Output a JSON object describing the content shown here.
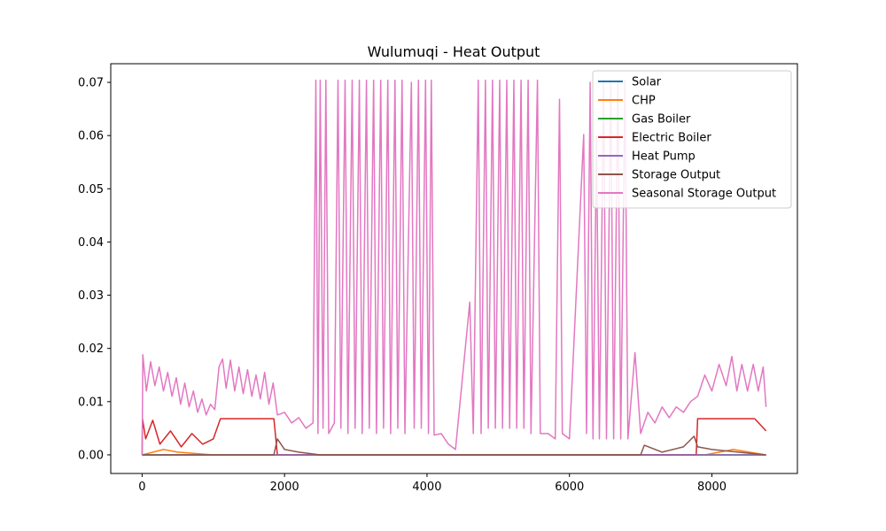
{
  "chart_data": {
    "type": "line",
    "title": "Wulumuqi - Heat Output",
    "xlabel": "",
    "ylabel": "",
    "xlim": [
      -440,
      9200
    ],
    "ylim": [
      -0.0035,
      0.0735
    ],
    "x_ticks": [
      0,
      2000,
      4000,
      6000,
      8000
    ],
    "x_tick_labels": [
      "0",
      "2000",
      "4000",
      "6000",
      "8000"
    ],
    "y_ticks": [
      0.0,
      0.01,
      0.02,
      0.03,
      0.04,
      0.05,
      0.06,
      0.07
    ],
    "y_tick_labels": [
      "0.00",
      "0.01",
      "0.02",
      "0.03",
      "0.04",
      "0.05",
      "0.06",
      "0.07"
    ],
    "grid": false,
    "legend_position": "upper right",
    "series": [
      {
        "name": "Solar",
        "color": "#1f77b4",
        "points": [
          [
            0,
            0
          ],
          [
            8760,
            0
          ]
        ]
      },
      {
        "name": "CHP",
        "color": "#ff7f0e",
        "points": [
          [
            0,
            0
          ],
          [
            300,
            0.001
          ],
          [
            500,
            0.0005
          ],
          [
            1000,
            0
          ],
          [
            7900,
            0
          ],
          [
            8300,
            0.001
          ],
          [
            8760,
            0
          ]
        ]
      },
      {
        "name": "Gas Boiler",
        "color": "#2ca02c",
        "points": [
          [
            0,
            0
          ],
          [
            8760,
            0
          ]
        ]
      },
      {
        "name": "Electric Boiler",
        "color": "#d62728",
        "points": [
          [
            0,
            0
          ],
          [
            5,
            0.0068
          ],
          [
            50,
            0.003
          ],
          [
            150,
            0.0065
          ],
          [
            250,
            0.002
          ],
          [
            400,
            0.0045
          ],
          [
            550,
            0.0015
          ],
          [
            700,
            0.004
          ],
          [
            850,
            0.002
          ],
          [
            1000,
            0.003
          ],
          [
            1100,
            0.0068
          ],
          [
            1300,
            0.0068
          ],
          [
            1500,
            0.0068
          ],
          [
            1700,
            0.0068
          ],
          [
            1850,
            0.0068
          ],
          [
            1900,
            0
          ],
          [
            7780,
            0
          ],
          [
            7800,
            0.0068
          ],
          [
            8000,
            0.0068
          ],
          [
            8200,
            0.0068
          ],
          [
            8400,
            0.0068
          ],
          [
            8600,
            0.0068
          ],
          [
            8760,
            0.0045
          ]
        ]
      },
      {
        "name": "Heat Pump",
        "color": "#9467bd",
        "points": [
          [
            0,
            0
          ],
          [
            8760,
            0
          ]
        ]
      },
      {
        "name": "Storage Output",
        "color": "#8c564b",
        "points": [
          [
            0,
            0
          ],
          [
            1850,
            0
          ],
          [
            1900,
            0.003
          ],
          [
            2000,
            0.001
          ],
          [
            2200,
            0.0005
          ],
          [
            2500,
            0
          ],
          [
            7000,
            0
          ],
          [
            7050,
            0.0018
          ],
          [
            7300,
            0.0005
          ],
          [
            7600,
            0.0015
          ],
          [
            7750,
            0.0035
          ],
          [
            7800,
            0.0015
          ],
          [
            8000,
            0.001
          ],
          [
            8760,
            0
          ]
        ]
      },
      {
        "name": "Seasonal Storage Output",
        "color": "#e377c2",
        "points": [
          [
            0,
            0
          ],
          [
            10,
            0.0188
          ],
          [
            60,
            0.012
          ],
          [
            120,
            0.0175
          ],
          [
            180,
            0.013
          ],
          [
            240,
            0.0165
          ],
          [
            300,
            0.012
          ],
          [
            360,
            0.0155
          ],
          [
            420,
            0.011
          ],
          [
            480,
            0.0145
          ],
          [
            540,
            0.0095
          ],
          [
            600,
            0.0135
          ],
          [
            660,
            0.009
          ],
          [
            720,
            0.012
          ],
          [
            780,
            0.008
          ],
          [
            840,
            0.0105
          ],
          [
            900,
            0.0075
          ],
          [
            960,
            0.0095
          ],
          [
            1020,
            0.0085
          ],
          [
            1080,
            0.0165
          ],
          [
            1130,
            0.018
          ],
          [
            1180,
            0.0125
          ],
          [
            1240,
            0.0178
          ],
          [
            1300,
            0.012
          ],
          [
            1360,
            0.0165
          ],
          [
            1420,
            0.0115
          ],
          [
            1480,
            0.016
          ],
          [
            1540,
            0.011
          ],
          [
            1600,
            0.015
          ],
          [
            1660,
            0.0105
          ],
          [
            1720,
            0.0155
          ],
          [
            1780,
            0.0095
          ],
          [
            1840,
            0.0135
          ],
          [
            1900,
            0.0075
          ],
          [
            2000,
            0.008
          ],
          [
            2100,
            0.006
          ],
          [
            2200,
            0.007
          ],
          [
            2300,
            0.005
          ],
          [
            2400,
            0.006
          ],
          [
            2440,
            0.0704
          ],
          [
            2470,
            0.004
          ],
          [
            2500,
            0.0704
          ],
          [
            2540,
            0.005
          ],
          [
            2580,
            0.0704
          ],
          [
            2620,
            0.004
          ],
          [
            2700,
            0.006
          ],
          [
            2750,
            0.0704
          ],
          [
            2790,
            0.005
          ],
          [
            2850,
            0.0704
          ],
          [
            2890,
            0.004
          ],
          [
            2950,
            0.0704
          ],
          [
            2990,
            0.005
          ],
          [
            3050,
            0.0704
          ],
          [
            3090,
            0.004
          ],
          [
            3150,
            0.0704
          ],
          [
            3190,
            0.005
          ],
          [
            3250,
            0.0704
          ],
          [
            3290,
            0.004
          ],
          [
            3350,
            0.0704
          ],
          [
            3390,
            0.005
          ],
          [
            3450,
            0.0704
          ],
          [
            3490,
            0.004
          ],
          [
            3550,
            0.0704
          ],
          [
            3590,
            0.005
          ],
          [
            3650,
            0.0704
          ],
          [
            3690,
            0.004
          ],
          [
            3780,
            0.07
          ],
          [
            3820,
            0.005
          ],
          [
            3880,
            0.0704
          ],
          [
            3920,
            0.005
          ],
          [
            3980,
            0.0704
          ],
          [
            4020,
            0.004
          ],
          [
            4060,
            0.0704
          ],
          [
            4100,
            0.0037
          ],
          [
            4200,
            0.004
          ],
          [
            4300,
            0.002
          ],
          [
            4400,
            0.001
          ],
          [
            4600,
            0.0287
          ],
          [
            4650,
            0.004
          ],
          [
            4720,
            0.0704
          ],
          [
            4760,
            0.004
          ],
          [
            4820,
            0.0704
          ],
          [
            4860,
            0.005
          ],
          [
            4920,
            0.0704
          ],
          [
            4960,
            0.005
          ],
          [
            5020,
            0.0704
          ],
          [
            5060,
            0.005
          ],
          [
            5120,
            0.0704
          ],
          [
            5160,
            0.005
          ],
          [
            5220,
            0.0704
          ],
          [
            5260,
            0.005
          ],
          [
            5320,
            0.0704
          ],
          [
            5360,
            0.005
          ],
          [
            5420,
            0.0704
          ],
          [
            5460,
            0.004
          ],
          [
            5550,
            0.0704
          ],
          [
            5590,
            0.004
          ],
          [
            5700,
            0.004
          ],
          [
            5800,
            0.003
          ],
          [
            5860,
            0.0668
          ],
          [
            5900,
            0.004
          ],
          [
            6000,
            0.003
          ],
          [
            6200,
            0.0602
          ],
          [
            6240,
            0.004
          ],
          [
            6290,
            0.07
          ],
          [
            6330,
            0.003
          ],
          [
            6380,
            0.0599
          ],
          [
            6420,
            0.003
          ],
          [
            6480,
            0.0704
          ],
          [
            6520,
            0.003
          ],
          [
            6580,
            0.0704
          ],
          [
            6620,
            0.003
          ],
          [
            6680,
            0.0704
          ],
          [
            6720,
            0.003
          ],
          [
            6780,
            0.0704
          ],
          [
            6820,
            0.003
          ],
          [
            6920,
            0.0192
          ],
          [
            7000,
            0.004
          ],
          [
            7100,
            0.008
          ],
          [
            7200,
            0.006
          ],
          [
            7300,
            0.009
          ],
          [
            7400,
            0.007
          ],
          [
            7500,
            0.009
          ],
          [
            7600,
            0.008
          ],
          [
            7700,
            0.01
          ],
          [
            7800,
            0.011
          ],
          [
            7900,
            0.015
          ],
          [
            8000,
            0.012
          ],
          [
            8100,
            0.017
          ],
          [
            8200,
            0.013
          ],
          [
            8280,
            0.0185
          ],
          [
            8350,
            0.012
          ],
          [
            8420,
            0.017
          ],
          [
            8500,
            0.012
          ],
          [
            8580,
            0.017
          ],
          [
            8650,
            0.012
          ],
          [
            8720,
            0.0165
          ],
          [
            8760,
            0.009
          ]
        ]
      }
    ]
  }
}
